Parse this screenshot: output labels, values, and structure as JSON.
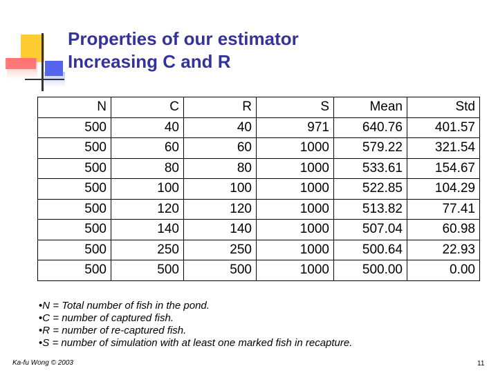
{
  "title_lines": [
    "Properties of our estimator",
    "Increasing C and R"
  ],
  "table": {
    "headers": [
      "N",
      "C",
      "R",
      "S",
      "Mean",
      "Std"
    ],
    "rows": [
      [
        "500",
        "40",
        "40",
        "971",
        "640.76",
        "401.57"
      ],
      [
        "500",
        "60",
        "60",
        "1000",
        "579.22",
        "321.54"
      ],
      [
        "500",
        "80",
        "80",
        "1000",
        "533.61",
        "154.67"
      ],
      [
        "500",
        "100",
        "100",
        "1000",
        "522.85",
        "104.29"
      ],
      [
        "500",
        "120",
        "120",
        "1000",
        "513.82",
        "77.41"
      ],
      [
        "500",
        "140",
        "140",
        "1000",
        "507.04",
        "60.98"
      ],
      [
        "500",
        "250",
        "250",
        "1000",
        "500.64",
        "22.93"
      ],
      [
        "500",
        "500",
        "500",
        "1000",
        "500.00",
        "0.00"
      ]
    ]
  },
  "notes": [
    "N = Total number of fish in the pond.",
    "C = number of captured fish.",
    "R = number of re-captured fish.",
    "S = number of simulation with at least one marked fish in recapture."
  ],
  "footer": {
    "author": "Ka-fu Wong © 2003",
    "page_number": "11"
  },
  "colors": {
    "title": "#333399",
    "accent_yellow": "#ffcc33",
    "accent_red": "#ff6a6a",
    "accent_blue": "#5566ee"
  }
}
